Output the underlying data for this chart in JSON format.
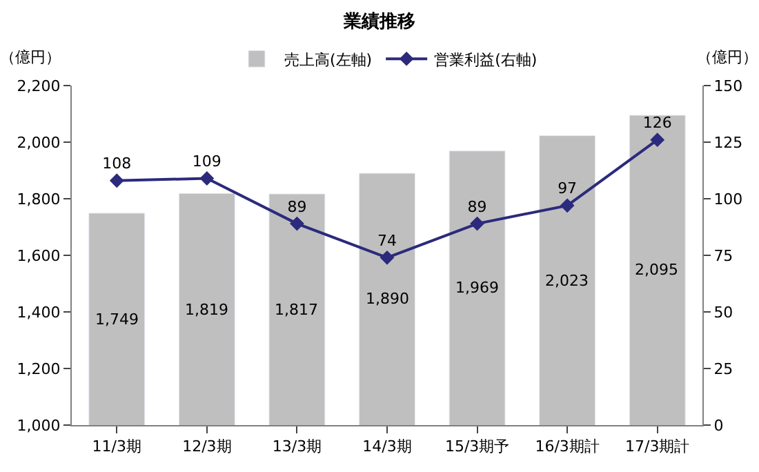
{
  "chart_data": {
    "type": "bar",
    "title": "業績推移",
    "ylabel": "（億円）",
    "y2label": "（億円）",
    "categories": [
      "11/3期",
      "12/3期",
      "13/3期",
      "14/3期",
      "15/3期予",
      "16/3期計",
      "17/3期計"
    ],
    "series": [
      {
        "name": "売上高(左軸)",
        "color": "#bfbfbf",
        "values": [
          1749,
          1819,
          1817,
          1890,
          1969,
          2023,
          2095
        ],
        "value_labels": [
          "1,749",
          "1,819",
          "1,817",
          "1,890",
          "1,969",
          "2,023",
          "2,095"
        ]
      },
      {
        "name": "営業利益(右軸)",
        "type": "line",
        "axis": "y2",
        "color": "#2b2a7c",
        "values": [
          108,
          109,
          89,
          74,
          89,
          97,
          126
        ]
      }
    ],
    "ylim": [
      1000,
      2200
    ],
    "yticks": [
      {
        "value": 1000,
        "label": "1,000"
      },
      {
        "value": 1200,
        "label": "1,200"
      },
      {
        "value": 1400,
        "label": "1,400"
      },
      {
        "value": 1600,
        "label": "1,600"
      },
      {
        "value": 1800,
        "label": "1,800"
      },
      {
        "value": 2000,
        "label": "2,000"
      },
      {
        "value": 2200,
        "label": "2,200"
      }
    ],
    "y2lim": [
      0,
      150
    ],
    "y2ticks": [
      0,
      25,
      50,
      75,
      100,
      125,
      150
    ],
    "data_labels": true,
    "marker": "diamond",
    "legend": "top"
  }
}
